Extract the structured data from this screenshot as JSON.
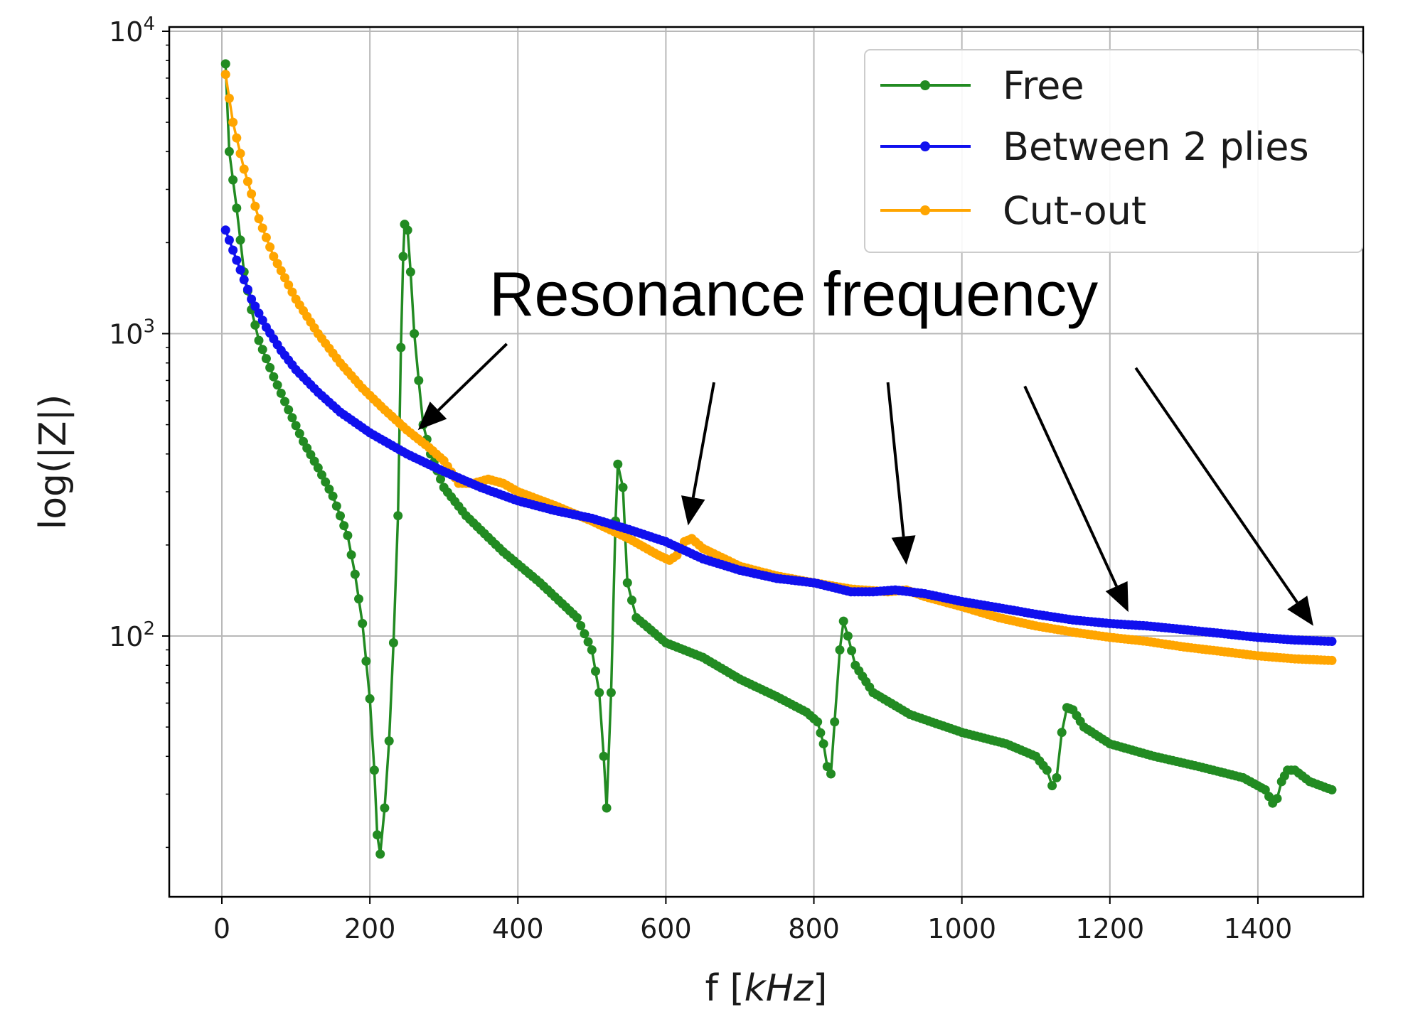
{
  "chart_data": {
    "type": "line",
    "xlabel": "f [kHz]",
    "xlabel_parts": {
      "prefix": "f [",
      "unit": "kHz",
      "suffix": "]"
    },
    "ylabel": "log(|Z|)",
    "yscale": "log",
    "xlim": [
      -70,
      1570
    ],
    "ylim": [
      14,
      11000
    ],
    "grid": true,
    "legend_position": "top-right",
    "x_ticks": [
      {
        "value": 0,
        "label": "0"
      },
      {
        "value": 200,
        "label": "200"
      },
      {
        "value": 400,
        "label": "400"
      },
      {
        "value": 600,
        "label": "600"
      },
      {
        "value": 800,
        "label": "800"
      },
      {
        "value": 1000,
        "label": "1000"
      },
      {
        "value": 1200,
        "label": "1200"
      },
      {
        "value": 1400,
        "label": "1400"
      }
    ],
    "y_ticks": [
      {
        "value": 100,
        "label_base": "10",
        "label_exp": "2"
      },
      {
        "value": 1000,
        "label_base": "10",
        "label_exp": "3"
      },
      {
        "value": 10000,
        "label_base": "10",
        "label_exp": "4"
      }
    ],
    "series": [
      {
        "name": "Free",
        "color": "#228b22",
        "points": [
          [
            5,
            7800
          ],
          [
            10,
            4000
          ],
          [
            20,
            2600
          ],
          [
            30,
            1600
          ],
          [
            40,
            1200
          ],
          [
            50,
            950
          ],
          [
            70,
            720
          ],
          [
            90,
            560
          ],
          [
            110,
            440
          ],
          [
            130,
            360
          ],
          [
            150,
            290
          ],
          [
            170,
            215
          ],
          [
            180,
            160
          ],
          [
            190,
            110
          ],
          [
            200,
            62
          ],
          [
            206,
            36
          ],
          [
            210,
            22
          ],
          [
            214,
            19
          ],
          [
            220,
            27
          ],
          [
            226,
            45
          ],
          [
            232,
            95
          ],
          [
            238,
            250
          ],
          [
            242,
            900
          ],
          [
            245,
            1800
          ],
          [
            247,
            2300
          ],
          [
            251,
            2200
          ],
          [
            255,
            1600
          ],
          [
            260,
            1000
          ],
          [
            266,
            700
          ],
          [
            272,
            500
          ],
          [
            282,
            400
          ],
          [
            300,
            310
          ],
          [
            330,
            250
          ],
          [
            380,
            190
          ],
          [
            430,
            150
          ],
          [
            480,
            115
          ],
          [
            500,
            90
          ],
          [
            510,
            65
          ],
          [
            516,
            40
          ],
          [
            520,
            27
          ],
          [
            526,
            65
          ],
          [
            532,
            240
          ],
          [
            535,
            370
          ],
          [
            542,
            310
          ],
          [
            548,
            150
          ],
          [
            560,
            115
          ],
          [
            600,
            95
          ],
          [
            650,
            85
          ],
          [
            700,
            72
          ],
          [
            750,
            63
          ],
          [
            790,
            56
          ],
          [
            805,
            52
          ],
          [
            813,
            44
          ],
          [
            818,
            37
          ],
          [
            823,
            35
          ],
          [
            828,
            52
          ],
          [
            835,
            90
          ],
          [
            840,
            112
          ],
          [
            846,
            100
          ],
          [
            856,
            80
          ],
          [
            880,
            65
          ],
          [
            930,
            55
          ],
          [
            1000,
            48
          ],
          [
            1060,
            44
          ],
          [
            1100,
            40
          ],
          [
            1115,
            36
          ],
          [
            1122,
            32
          ],
          [
            1128,
            34
          ],
          [
            1135,
            48
          ],
          [
            1142,
            58
          ],
          [
            1150,
            57
          ],
          [
            1165,
            50
          ],
          [
            1200,
            44
          ],
          [
            1260,
            40
          ],
          [
            1320,
            37
          ],
          [
            1380,
            34
          ],
          [
            1410,
            31
          ],
          [
            1420,
            28
          ],
          [
            1426,
            29
          ],
          [
            1432,
            33
          ],
          [
            1440,
            36
          ],
          [
            1450,
            36
          ],
          [
            1470,
            33
          ],
          [
            1500,
            31
          ]
        ]
      },
      {
        "name": "Between 2 plies",
        "color": "#1010ee",
        "points": [
          [
            5,
            2200
          ],
          [
            20,
            1750
          ],
          [
            40,
            1300
          ],
          [
            60,
            1050
          ],
          [
            80,
            880
          ],
          [
            100,
            760
          ],
          [
            130,
            640
          ],
          [
            160,
            550
          ],
          [
            200,
            470
          ],
          [
            250,
            400
          ],
          [
            300,
            350
          ],
          [
            350,
            310
          ],
          [
            400,
            280
          ],
          [
            450,
            260
          ],
          [
            500,
            245
          ],
          [
            550,
            225
          ],
          [
            600,
            205
          ],
          [
            650,
            180
          ],
          [
            700,
            165
          ],
          [
            750,
            155
          ],
          [
            800,
            150
          ],
          [
            850,
            140
          ],
          [
            880,
            140
          ],
          [
            910,
            142
          ],
          [
            950,
            138
          ],
          [
            1000,
            130
          ],
          [
            1050,
            124
          ],
          [
            1100,
            118
          ],
          [
            1150,
            113
          ],
          [
            1200,
            110
          ],
          [
            1250,
            108
          ],
          [
            1300,
            105
          ],
          [
            1350,
            102
          ],
          [
            1400,
            99
          ],
          [
            1450,
            97
          ],
          [
            1500,
            96
          ]
        ]
      },
      {
        "name": "Cut-out",
        "color": "#ffa500",
        "points": [
          [
            5,
            7200
          ],
          [
            15,
            5000
          ],
          [
            30,
            3500
          ],
          [
            50,
            2400
          ],
          [
            70,
            1800
          ],
          [
            100,
            1300
          ],
          [
            130,
            1000
          ],
          [
            160,
            800
          ],
          [
            190,
            660
          ],
          [
            220,
            560
          ],
          [
            250,
            480
          ],
          [
            280,
            420
          ],
          [
            300,
            380
          ],
          [
            320,
            320
          ],
          [
            340,
            320
          ],
          [
            360,
            330
          ],
          [
            380,
            320
          ],
          [
            400,
            300
          ],
          [
            450,
            270
          ],
          [
            500,
            240
          ],
          [
            550,
            210
          ],
          [
            590,
            185
          ],
          [
            605,
            178
          ],
          [
            615,
            185
          ],
          [
            625,
            205
          ],
          [
            635,
            210
          ],
          [
            650,
            195
          ],
          [
            700,
            170
          ],
          [
            750,
            158
          ],
          [
            800,
            150
          ],
          [
            850,
            143
          ],
          [
            900,
            140
          ],
          [
            925,
            142
          ],
          [
            950,
            135
          ],
          [
            1000,
            125
          ],
          [
            1050,
            115
          ],
          [
            1100,
            108
          ],
          [
            1150,
            103
          ],
          [
            1200,
            99
          ],
          [
            1250,
            96
          ],
          [
            1300,
            92
          ],
          [
            1350,
            89
          ],
          [
            1400,
            86
          ],
          [
            1450,
            84
          ],
          [
            1500,
            83
          ]
        ]
      }
    ],
    "annotation": {
      "text": "Resonance frequency",
      "arrow_targets": [
        {
          "x": 265,
          "y": 480
        },
        {
          "x": 630,
          "y": 232
        },
        {
          "x": 925,
          "y": 172
        },
        {
          "x": 1225,
          "y": 120
        },
        {
          "x": 1475,
          "y": 108
        }
      ],
      "arrow_tails": [
        {
          "x": 385,
          "y": 925
        },
        {
          "x": 665,
          "y": 690
        },
        {
          "x": 900,
          "y": 690
        },
        {
          "x": 1085,
          "y": 670
        },
        {
          "x": 1235,
          "y": 770
        }
      ]
    }
  }
}
